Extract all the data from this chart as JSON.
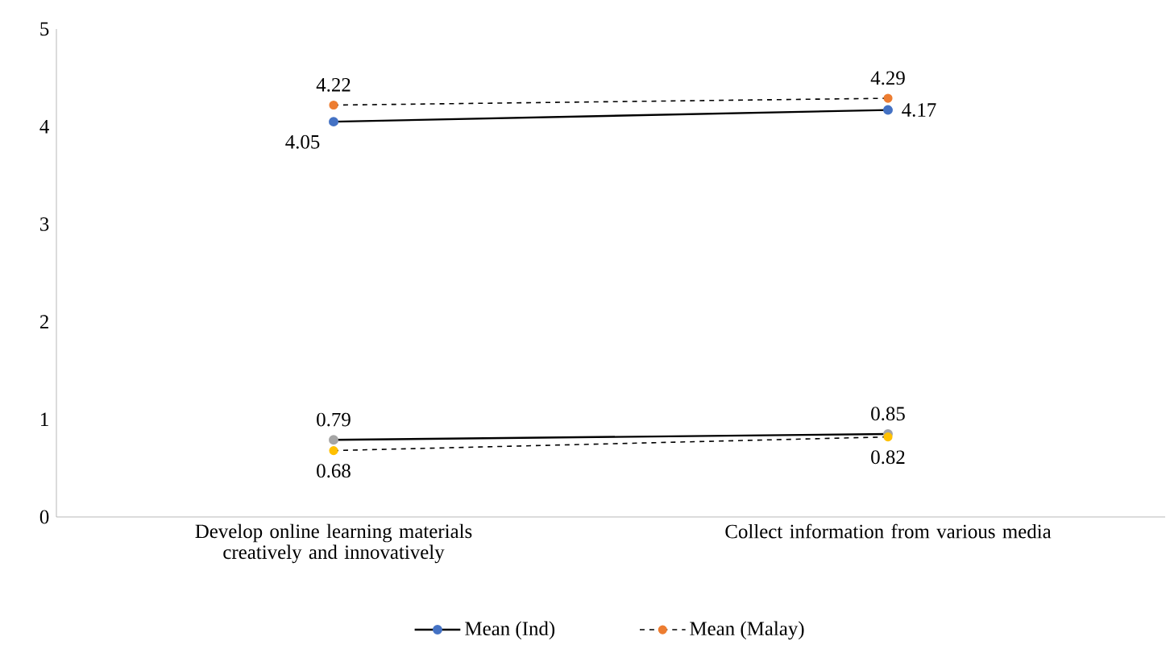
{
  "chart_data": {
    "type": "line",
    "categories": [
      "Develop online learning materials creatively and innovatively",
      "Collect information from various media"
    ],
    "series": [
      {
        "name": "Mean (Ind)",
        "color": "#4472c4",
        "line_style": "solid",
        "values": [
          4.05,
          4.17
        ]
      },
      {
        "name": "Mean (Malay)",
        "color": "#ed7d31",
        "line_style": "dashed",
        "values": [
          4.22,
          4.29
        ]
      },
      {
        "color": "#a5a5a5",
        "line_style": "solid",
        "values": [
          0.79,
          0.85
        ]
      },
      {
        "color": "#ffc000",
        "line_style": "dashed",
        "values": [
          0.68,
          0.82
        ]
      }
    ],
    "ylim": [
      0,
      5
    ],
    "yticks": [
      0,
      1,
      2,
      3,
      4,
      5
    ],
    "grid": false,
    "legend": "bottom",
    "marker": "circle",
    "data_labels": true
  }
}
